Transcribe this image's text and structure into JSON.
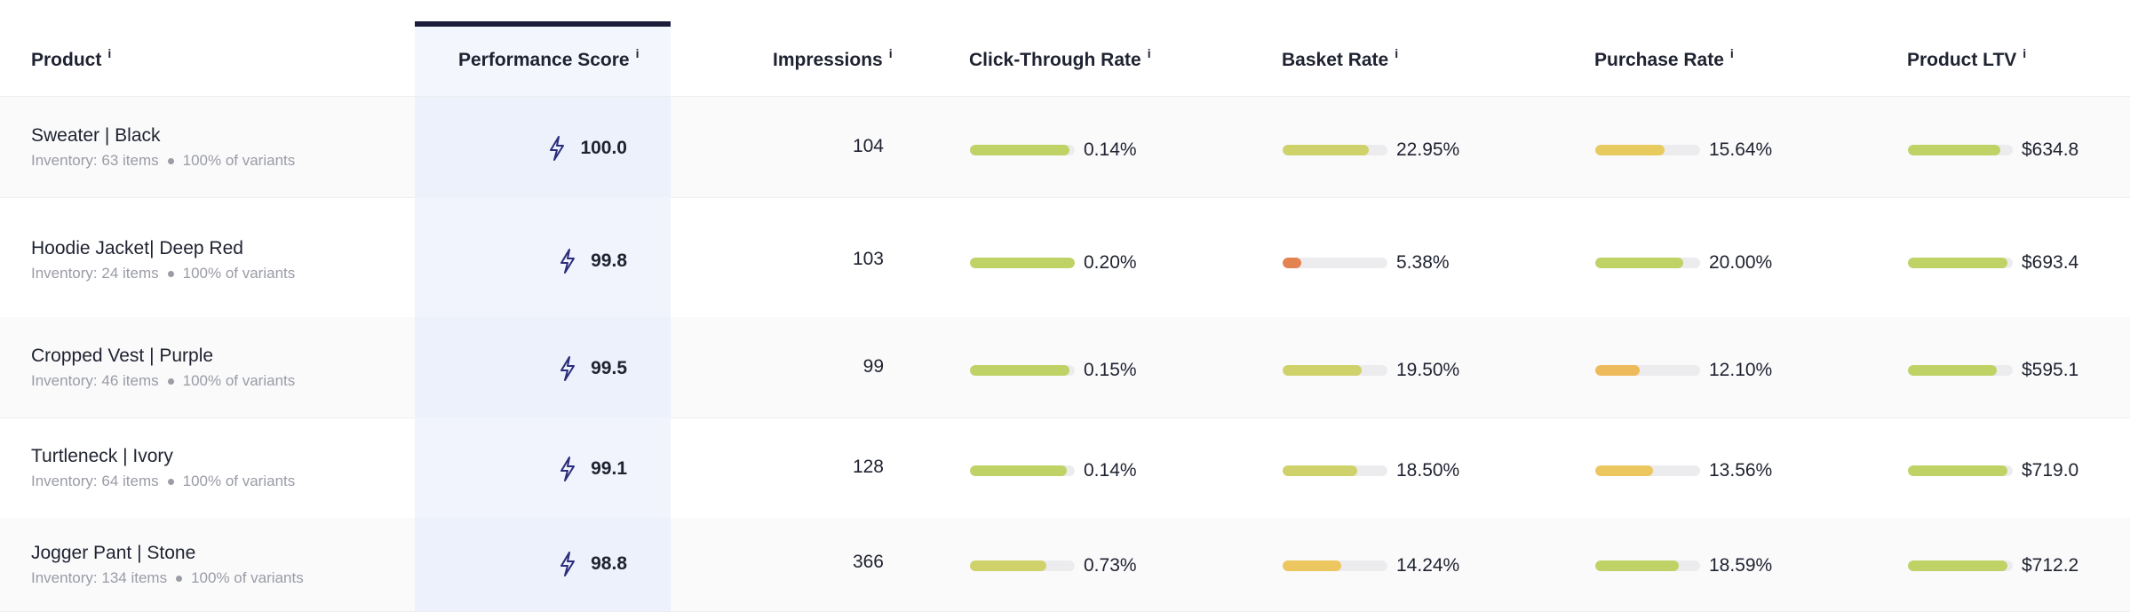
{
  "columns": {
    "product": "Product",
    "performance_score": "Performance Score",
    "impressions": "Impressions",
    "ctr": "Click-Through Rate",
    "basket_rate": "Basket Rate",
    "purchase_rate": "Purchase Rate",
    "ltv": "Product LTV",
    "info_glyph": "i"
  },
  "colors": {
    "green": "#bfd266",
    "yellowgreen": "#cfd26a",
    "yellow": "#ecc65e",
    "amber": "#eebb5c",
    "orange": "#e48352",
    "perf_accent": "#1b1d3a"
  },
  "rows": [
    {
      "name": "Sweater | Black",
      "inventory": "Inventory: 63 items",
      "variants": "100% of variants",
      "score": "100.0",
      "impressions": "104",
      "ctr": {
        "label": "0.14%",
        "level": 0.95,
        "color": "#bfd266"
      },
      "basket": {
        "label": "22.95%",
        "level": 0.82,
        "color": "#cfd26a"
      },
      "purchase": {
        "label": "15.64%",
        "level": 0.66,
        "color": "#e7cb5e"
      },
      "ltv": {
        "label": "$634.8",
        "level": 0.88,
        "color": "#bfd266"
      }
    },
    {
      "name": "Hoodie Jacket| Deep Red",
      "inventory": "Inventory: 24 items",
      "variants": "100% of variants",
      "score": "99.8",
      "impressions": "103",
      "ctr": {
        "label": "0.20%",
        "level": 1.0,
        "color": "#bfd266"
      },
      "basket": {
        "label": "5.38%",
        "level": 0.18,
        "color": "#e48352"
      },
      "purchase": {
        "label": "20.00%",
        "level": 0.84,
        "color": "#bfd266"
      },
      "ltv": {
        "label": "$693.4",
        "level": 0.95,
        "color": "#bfd266"
      }
    },
    {
      "name": "Cropped Vest | Purple",
      "inventory": "Inventory: 46 items",
      "variants": "100% of variants",
      "score": "99.5",
      "impressions": "99",
      "ctr": {
        "label": "0.15%",
        "level": 0.95,
        "color": "#bfd266"
      },
      "basket": {
        "label": "19.50%",
        "level": 0.75,
        "color": "#cfd26a"
      },
      "purchase": {
        "label": "12.10%",
        "level": 0.42,
        "color": "#eebb5c"
      },
      "ltv": {
        "label": "$595.1",
        "level": 0.85,
        "color": "#bfd266"
      }
    },
    {
      "name": "Turtleneck | Ivory",
      "inventory": "Inventory: 64 items",
      "variants": "100% of variants",
      "score": "99.1",
      "impressions": "128",
      "ctr": {
        "label": "0.14%",
        "level": 0.92,
        "color": "#bfd266"
      },
      "basket": {
        "label": "18.50%",
        "level": 0.71,
        "color": "#cfd26a"
      },
      "purchase": {
        "label": "13.56%",
        "level": 0.55,
        "color": "#ecc65e"
      },
      "ltv": {
        "label": "$719.0",
        "level": 0.95,
        "color": "#bfd266"
      }
    },
    {
      "name": "Jogger Pant | Stone",
      "inventory": "Inventory: 134 items",
      "variants": "100% of variants",
      "score": "98.8",
      "impressions": "366",
      "ctr": {
        "label": "0.73%",
        "level": 0.73,
        "color": "#cfd26a"
      },
      "basket": {
        "label": "14.24%",
        "level": 0.56,
        "color": "#ecc65e"
      },
      "purchase": {
        "label": "18.59%",
        "level": 0.8,
        "color": "#bfd266"
      },
      "ltv": {
        "label": "$712.2",
        "level": 0.95,
        "color": "#bfd266"
      }
    }
  ]
}
